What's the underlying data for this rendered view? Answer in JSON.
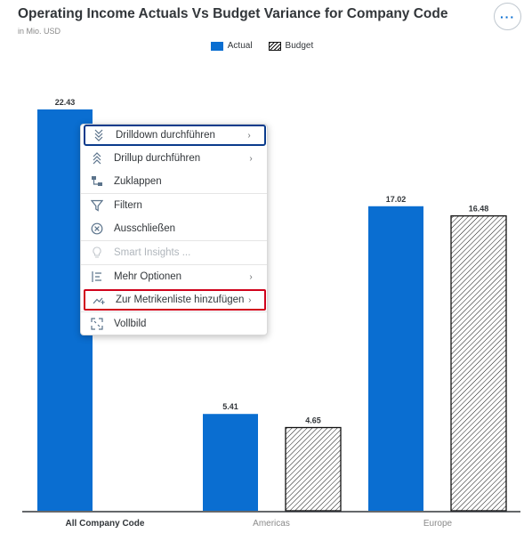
{
  "header": {
    "title": "Operating Income Actuals Vs Budget Variance for Company Code",
    "subtitle": "in Mio. USD",
    "more_label": "···"
  },
  "legend": {
    "actual": "Actual",
    "budget": "Budget"
  },
  "colors": {
    "actual": "#0a6ed1",
    "budget_stroke": "#111111",
    "highlight": "#d0021b",
    "focus": "#0a3b8c"
  },
  "chart_data": {
    "type": "bar",
    "categories": [
      "All Company Code",
      "Americas",
      "Europe"
    ],
    "series": [
      {
        "name": "Actual",
        "values": [
          22.43,
          5.41,
          17.02
        ]
      },
      {
        "name": "Budget",
        "values": [
          null,
          4.65,
          16.48
        ]
      }
    ],
    "value_labels": {
      "Actual": [
        "22.43",
        "5.41",
        "17.02"
      ],
      "Budget": [
        "",
        "4.65",
        "16.48"
      ]
    },
    "ylim": [
      0,
      22.43
    ],
    "grid": false,
    "legend_position": "top-center"
  },
  "context_menu": {
    "items": [
      {
        "label": "Drilldown durchführen",
        "icon": "drilldown-icon",
        "has_submenu": true
      },
      {
        "label": "Drillup durchführen",
        "icon": "drillup-icon",
        "has_submenu": true
      },
      {
        "label": "Zuklappen",
        "icon": "collapse-hierarchy-icon",
        "has_submenu": false
      },
      {
        "label": "Filtern",
        "icon": "filter-icon",
        "has_submenu": false
      },
      {
        "label": "Ausschließen",
        "icon": "exclude-icon",
        "has_submenu": false
      },
      {
        "label": "Smart Insights ...",
        "icon": "lightbulb-icon",
        "has_submenu": false,
        "disabled": true
      },
      {
        "label": "Mehr Optionen",
        "icon": "more-options-icon",
        "has_submenu": true
      },
      {
        "label": "Zur Metrikenliste hinzufügen",
        "icon": "trend-add-icon",
        "has_submenu": true
      },
      {
        "label": "Vollbild",
        "icon": "fullscreen-icon",
        "has_submenu": false
      }
    ],
    "arrow": "›"
  }
}
